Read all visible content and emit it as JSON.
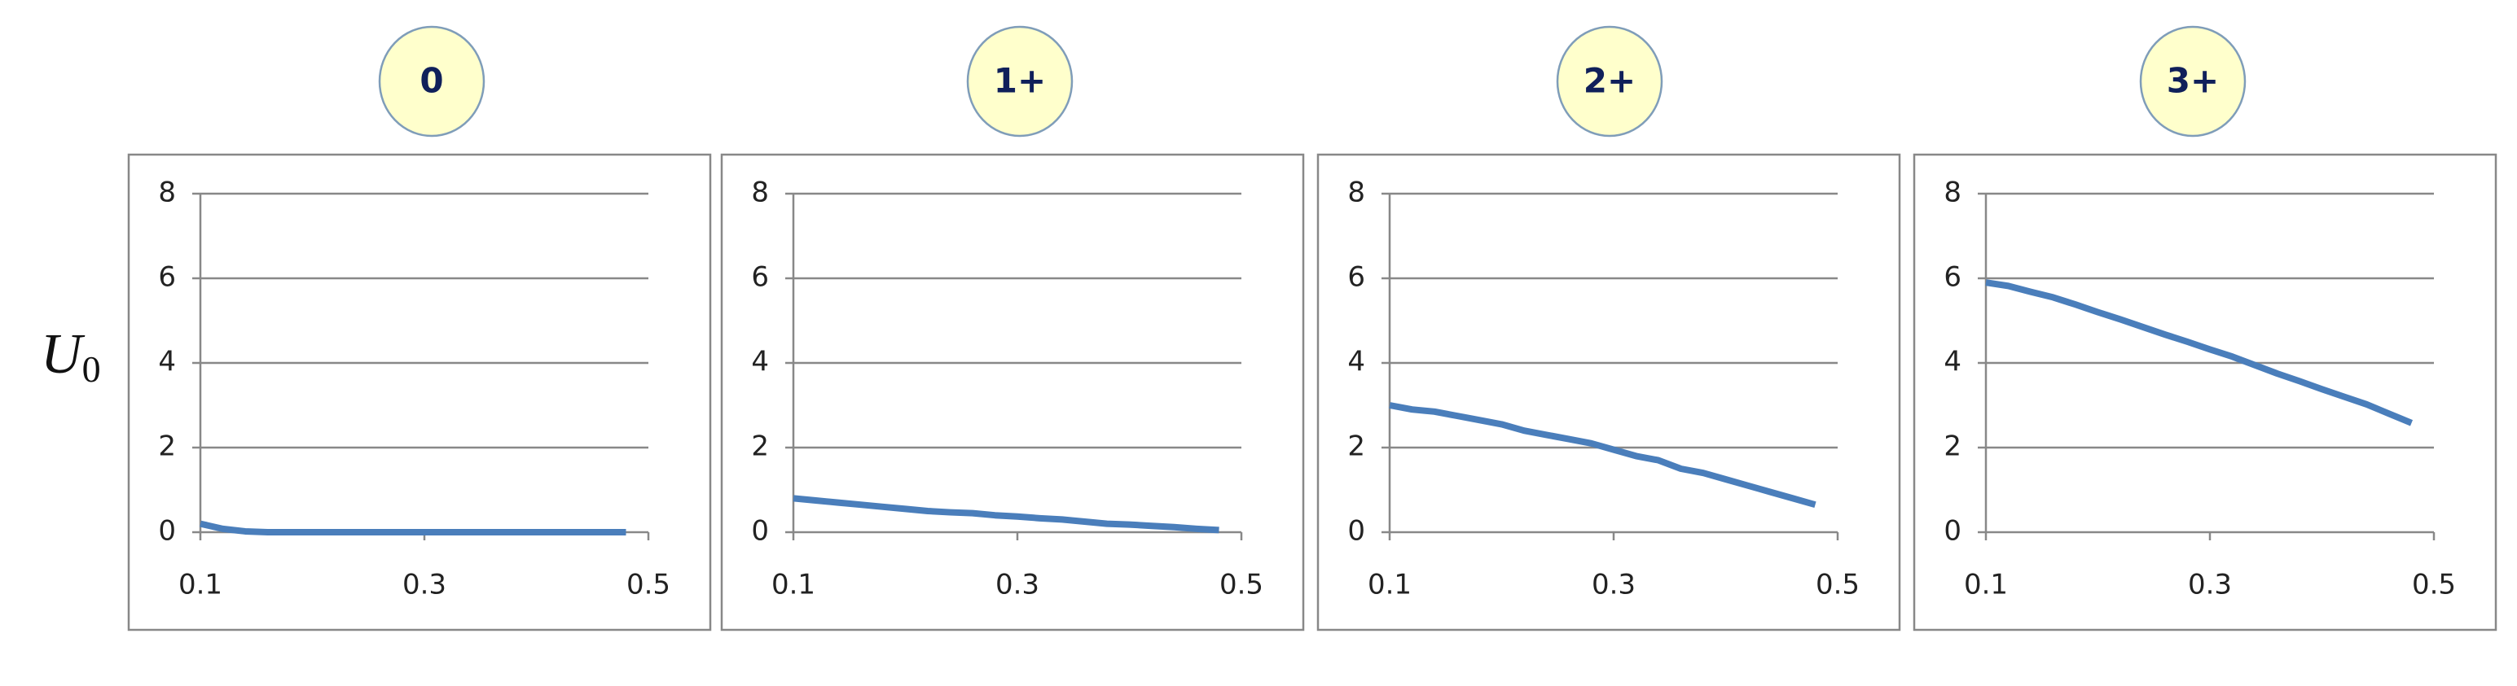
{
  "shared_ylabel": {
    "symbol": "U",
    "subscript": "0"
  },
  "chart_data": [
    {
      "type": "line",
      "title": "0",
      "color": "#4a7ebb",
      "x": [
        0.1,
        0.12,
        0.14,
        0.16,
        0.18,
        0.2,
        0.22,
        0.24,
        0.26,
        0.28,
        0.3,
        0.32,
        0.34,
        0.36,
        0.38,
        0.4,
        0.42,
        0.44,
        0.46,
        0.48
      ],
      "values": [
        0.2,
        0.08,
        0.02,
        0,
        0,
        0,
        0,
        0,
        0,
        0,
        0,
        0,
        0,
        0,
        0,
        0,
        0,
        0,
        0,
        0
      ],
      "xlim": [
        0.1,
        0.5
      ],
      "xticks": [
        0.1,
        0.3,
        0.5
      ],
      "ylim": [
        0,
        8
      ],
      "yticks": [
        0,
        2,
        4,
        6,
        8
      ],
      "grid": true
    },
    {
      "type": "line",
      "title": "1+",
      "color": "#4a7ebb",
      "x": [
        0.1,
        0.12,
        0.14,
        0.16,
        0.18,
        0.2,
        0.22,
        0.24,
        0.26,
        0.28,
        0.3,
        0.32,
        0.34,
        0.36,
        0.38,
        0.4,
        0.42,
        0.44,
        0.46,
        0.48
      ],
      "values": [
        0.8,
        0.75,
        0.7,
        0.65,
        0.6,
        0.55,
        0.5,
        0.47,
        0.45,
        0.4,
        0.37,
        0.33,
        0.3,
        0.25,
        0.2,
        0.18,
        0.15,
        0.12,
        0.08,
        0.05
      ],
      "xlim": [
        0.1,
        0.5
      ],
      "xticks": [
        0.1,
        0.3,
        0.5
      ],
      "ylim": [
        0,
        8
      ],
      "yticks": [
        0,
        2,
        4,
        6,
        8
      ],
      "grid": true
    },
    {
      "type": "line",
      "title": "2+",
      "color": "#4a7ebb",
      "x": [
        0.1,
        0.12,
        0.14,
        0.16,
        0.18,
        0.2,
        0.22,
        0.24,
        0.26,
        0.28,
        0.3,
        0.32,
        0.34,
        0.36,
        0.38,
        0.4,
        0.42,
        0.44,
        0.46,
        0.48
      ],
      "values": [
        3.0,
        2.9,
        2.85,
        2.75,
        2.65,
        2.55,
        2.4,
        2.3,
        2.2,
        2.1,
        1.95,
        1.8,
        1.7,
        1.5,
        1.4,
        1.25,
        1.1,
        0.95,
        0.8,
        0.65
      ],
      "xlim": [
        0.1,
        0.5
      ],
      "xticks": [
        0.1,
        0.3,
        0.5
      ],
      "ylim": [
        0,
        8
      ],
      "yticks": [
        0,
        2,
        4,
        6,
        8
      ],
      "grid": true
    },
    {
      "type": "line",
      "title": "3+",
      "color": "#4a7ebb",
      "x": [
        0.1,
        0.12,
        0.14,
        0.16,
        0.18,
        0.2,
        0.22,
        0.24,
        0.26,
        0.28,
        0.3,
        0.32,
        0.34,
        0.36,
        0.38,
        0.4,
        0.42,
        0.44,
        0.46,
        0.48
      ],
      "values": [
        5.9,
        5.82,
        5.68,
        5.55,
        5.38,
        5.2,
        5.03,
        4.85,
        4.67,
        4.5,
        4.32,
        4.15,
        3.95,
        3.75,
        3.57,
        3.38,
        3.2,
        3.02,
        2.8,
        2.58
      ],
      "xlim": [
        0.1,
        0.5
      ],
      "xticks": [
        0.1,
        0.3,
        0.5
      ],
      "ylim": [
        0,
        8
      ],
      "yticks": [
        0,
        2,
        4,
        6,
        8
      ],
      "grid": true
    }
  ]
}
